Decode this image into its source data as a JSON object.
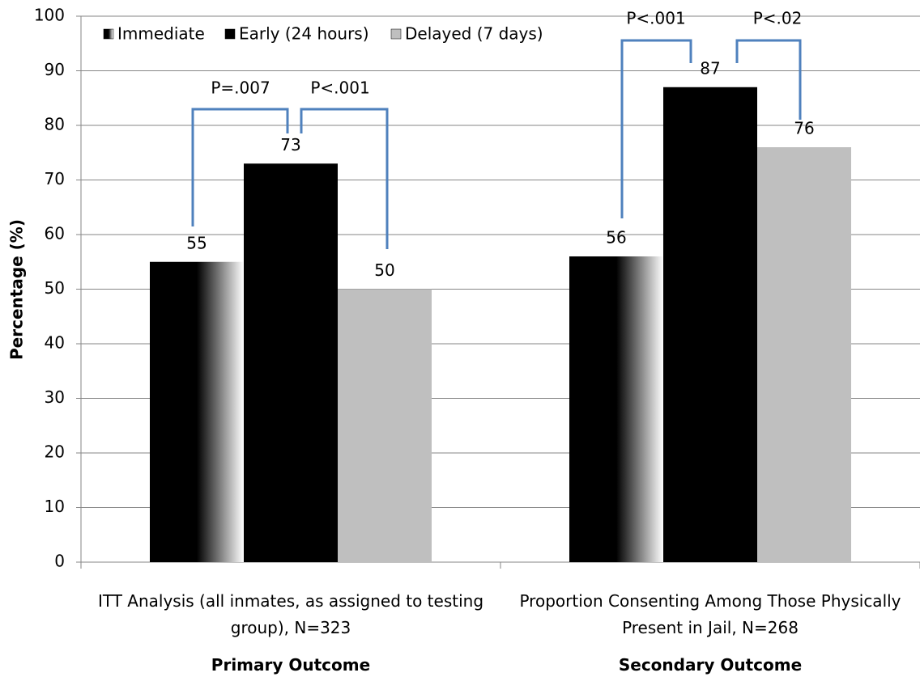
{
  "chart_data": {
    "type": "bar",
    "y_label": "Percentage (%)",
    "categories": [
      "ITT Analysis (all inmates, as assigned to testing group), N=323",
      "Proportion Consenting Among Those Physically Present in Jail, N=268"
    ],
    "group_labels": [
      "Primary Outcome",
      "Secondary Outcome"
    ],
    "series": [
      {
        "name": "Immediate",
        "color": "#000000",
        "gradient_to": "#ffffff",
        "values": [
          55,
          56
        ]
      },
      {
        "name": "Early (24 hours)",
        "color": "#000000",
        "values": [
          73,
          87
        ]
      },
      {
        "name": "Delayed (7 days)",
        "color": "#bfbfbf",
        "values": [
          50,
          76
        ]
      }
    ],
    "annotations": [
      "P=.007",
      "P<.001",
      "P<.001",
      "P<.02"
    ],
    "annotation_color": "#4f81bd",
    "ylim": [
      0,
      100
    ],
    "yticks": [
      0,
      10,
      20,
      30,
      40,
      50,
      60,
      70,
      80,
      90,
      100
    ],
    "grid": true,
    "legend": "upper left"
  }
}
